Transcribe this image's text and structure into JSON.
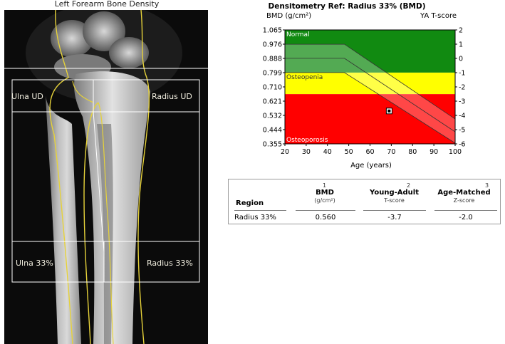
{
  "xray": {
    "title": "Left Forearm Bone Density",
    "roi_labels": {
      "ulna_ud": "Ulna UD",
      "radius_ud": "Radius UD",
      "ulna_33": "Ulna 33%",
      "radius_33": "Radius 33%"
    }
  },
  "chart_data": {
    "type": "area",
    "title": "Densitometry Ref: Radius 33% (BMD)",
    "ylabel": "BMD (g/cm²)",
    "y2label": "YA T-score",
    "xlabel": "Age (years)",
    "xlim": [
      20,
      100
    ],
    "ylim": [
      0.355,
      1.065
    ],
    "x_ticks": [
      "20",
      "30",
      "40",
      "50",
      "60",
      "70",
      "80",
      "90",
      "100"
    ],
    "y_ticks": [
      "1.065",
      "0.976",
      "0.888",
      "0.799",
      "0.710",
      "0.621",
      "0.532",
      "0.444",
      "0.355"
    ],
    "y2_ticks": [
      "2",
      "1",
      "0",
      "-1",
      "-2",
      "-3",
      "-4",
      "-5",
      "-6"
    ],
    "zones": [
      {
        "name": "Normal",
        "color": "#118a11",
        "from": 0.799,
        "to": 1.065
      },
      {
        "name": "Osteopenia",
        "color": "#ffff00",
        "from": 0.665,
        "to": 0.799
      },
      {
        "name": "Osteoporosis",
        "color": "#ff0000",
        "from": 0.355,
        "to": 0.665
      }
    ],
    "reference_band": {
      "upper": [
        [
          20,
          0.976
        ],
        [
          48,
          0.976
        ],
        [
          100,
          0.51
        ]
      ],
      "mean": [
        [
          20,
          0.888
        ],
        [
          48,
          0.888
        ],
        [
          100,
          0.43
        ]
      ],
      "lower": [
        [
          20,
          0.799
        ],
        [
          48,
          0.799
        ],
        [
          100,
          0.36
        ]
      ]
    },
    "patient_point": {
      "x": 69,
      "y": 0.56
    },
    "grid": false
  },
  "table": {
    "headers": [
      {
        "label": "Region",
        "sub": "",
        "sup": ""
      },
      {
        "label": "BMD",
        "sub": "(g/cm²)",
        "sup": "1"
      },
      {
        "label": "Young-Adult",
        "sub": "T-score",
        "sup": "2"
      },
      {
        "label": "Age-Matched",
        "sub": "Z-score",
        "sup": "3"
      }
    ],
    "rows": [
      {
        "region": "Radius 33%",
        "bmd": "0.560",
        "t_score": "-3.7",
        "z_score": "-2.0"
      }
    ]
  }
}
